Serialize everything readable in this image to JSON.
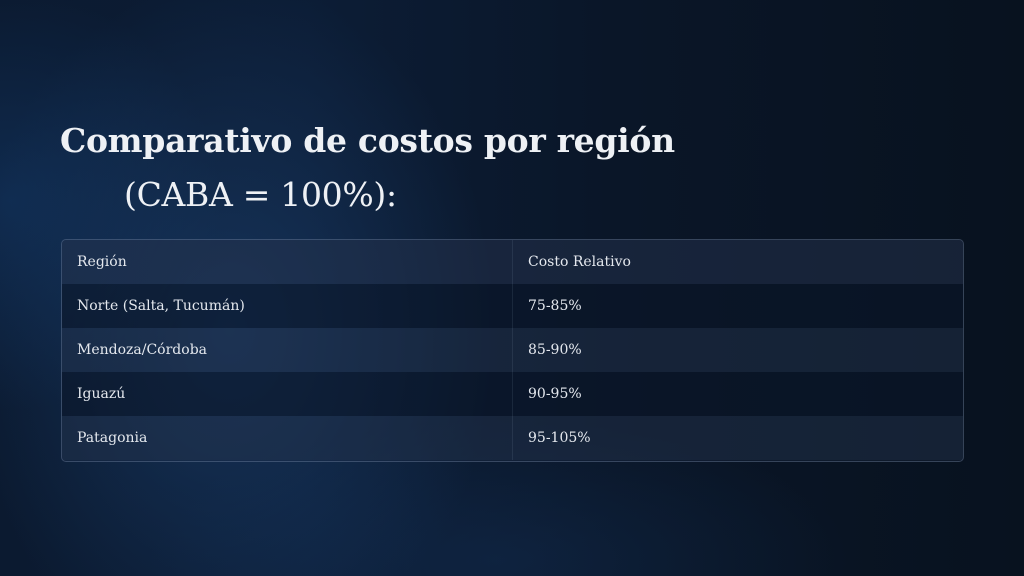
{
  "title": {
    "line1": "Comparativo de costos por región",
    "line2": "(CABA = 100%):"
  },
  "table": {
    "headers": [
      "Región",
      "Costo Relativo"
    ],
    "rows": [
      [
        "Norte (Salta, Tucumán)",
        "75-85%"
      ],
      [
        "Mendoza/Córdoba",
        "85-90%"
      ],
      [
        "Iguazú",
        "90-95%"
      ],
      [
        "Patagonia",
        "95-105%"
      ]
    ]
  }
}
